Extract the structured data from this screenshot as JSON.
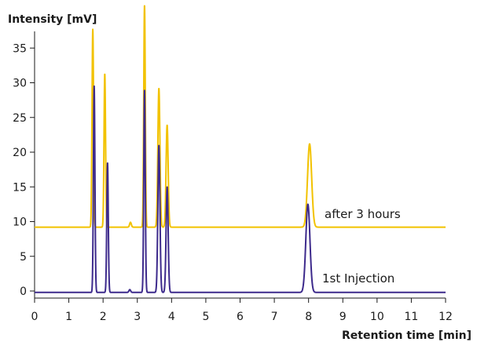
{
  "chart_data": {
    "type": "line",
    "ylabel": "Intensity [mV]",
    "xlabel": "Retention time [min]",
    "xlim": [
      0,
      12
    ],
    "ylim": [
      -2,
      40
    ],
    "xticks": [
      0,
      1,
      2,
      3,
      4,
      5,
      6,
      7,
      8,
      9,
      10,
      11,
      12
    ],
    "yticks": [
      0,
      5,
      10,
      15,
      20,
      25,
      30,
      35
    ],
    "grid": false,
    "series": [
      {
        "name": "after 3 hours",
        "color": "#F2C200",
        "baseline": 9.2,
        "peaks": [
          {
            "x": 1.7,
            "height": 28.5,
            "width": 0.022
          },
          {
            "x": 2.05,
            "height": 22.1,
            "width": 0.022
          },
          {
            "x": 2.8,
            "height": 0.7,
            "width": 0.025
          },
          {
            "x": 3.21,
            "height": 32.0,
            "width": 0.022
          },
          {
            "x": 3.63,
            "height": 20.0,
            "width": 0.03
          },
          {
            "x": 3.87,
            "height": 14.7,
            "width": 0.03
          },
          {
            "x": 8.03,
            "height": 12.0,
            "width": 0.06
          }
        ],
        "x": [
          0.0,
          1.55,
          1.7,
          2.05,
          2.8,
          3.21,
          3.63,
          3.87,
          8.03,
          12.0
        ],
        "y": [
          9.2,
          9.2,
          37.7,
          31.3,
          9.9,
          41.2,
          29.2,
          23.9,
          21.2,
          9.2
        ]
      },
      {
        "name": "1st Injection",
        "color": "#3D2A8C",
        "baseline": -0.2,
        "peaks": [
          {
            "x": 1.74,
            "height": 29.7,
            "width": 0.022
          },
          {
            "x": 2.13,
            "height": 18.7,
            "width": 0.022
          },
          {
            "x": 2.78,
            "height": 0.4,
            "width": 0.025
          },
          {
            "x": 3.21,
            "height": 29.2,
            "width": 0.022
          },
          {
            "x": 3.63,
            "height": 21.2,
            "width": 0.03
          },
          {
            "x": 3.87,
            "height": 15.2,
            "width": 0.03
          },
          {
            "x": 7.98,
            "height": 12.7,
            "width": 0.06
          }
        ],
        "x": [
          0.0,
          1.5,
          1.74,
          2.13,
          2.78,
          3.21,
          3.63,
          3.87,
          7.98,
          12.0
        ],
        "y": [
          -0.2,
          -0.2,
          29.5,
          18.5,
          0.2,
          29.0,
          21.0,
          15.0,
          12.5,
          -0.2
        ]
      }
    ],
    "annotations": [
      {
        "text": "after 3 hours",
        "series": "after 3 hours"
      },
      {
        "text": "1st Injection",
        "series": "1st Injection"
      }
    ]
  }
}
